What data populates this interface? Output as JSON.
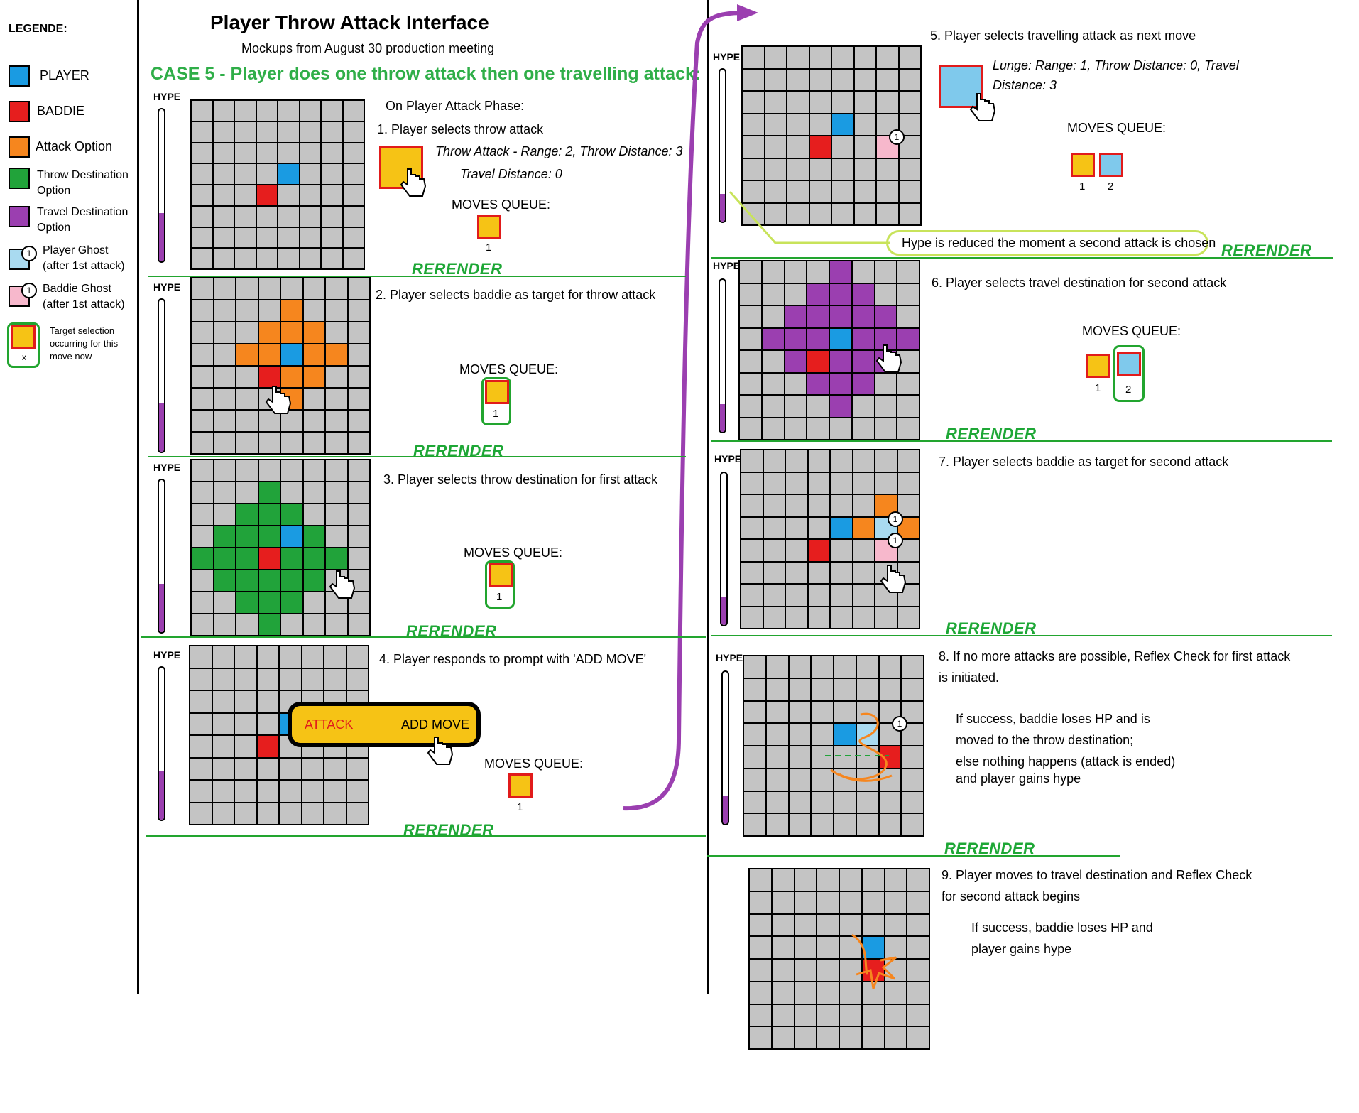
{
  "header": {
    "title": "Player Throw Attack Interface",
    "subtitle": "Mockups from August 30 production meeting",
    "case": "CASE 5 - Player does one throw attack then one travelling attack:"
  },
  "legend": {
    "title": "LEGENDE:",
    "items": [
      {
        "label": "PLAYER",
        "color": "#1a9be2"
      },
      {
        "label": "BADDIE",
        "color": "#e61e1e"
      },
      {
        "label": "Attack Option",
        "color": "#f6861e"
      },
      {
        "label_l1": "Throw Destination",
        "label_l2": "Option",
        "color": "#21a33a"
      },
      {
        "label_l1": "Travel Destination",
        "label_l2": "Option",
        "color": "#9b3fb0"
      },
      {
        "label_l1": "Player Ghost",
        "label_l2": "(after 1st attack)",
        "color": "#a9daf0"
      },
      {
        "label_l1": "Baddie Ghost",
        "label_l2": "(after 1st attack)",
        "color": "#f7b8cc"
      }
    ],
    "target_l1": "Target selection",
    "target_l2": "occurring for this",
    "target_l3": "move now",
    "target_x": "x",
    "ghost_num": "1"
  },
  "common": {
    "hype": "HYPE",
    "rerender": "RERENDER",
    "moves_queue": "MOVES QUEUE:",
    "q1": "1",
    "q2": "2"
  },
  "steps": {
    "s1_intro": "On Player Attack Phase:",
    "s1": "1. Player selects throw attack",
    "s1_info1": "Throw Attack - Range: 2, Throw Distance: 3",
    "s1_info2": "Travel Distance: 0",
    "s2": "2. Player selects baddie as target for throw attack",
    "s3": "3. Player selects throw destination for first attack",
    "s4": "4. Player responds to prompt with 'ADD MOVE'",
    "s4_attack": "ATTACK",
    "s4_add": "ADD MOVE",
    "s5": "5. Player selects travelling attack as next move",
    "s5_info1": "Lunge: Range: 1, Throw Distance: 0, Travel",
    "s5_info2": "Distance: 3",
    "s5_note": "Hype is reduced the moment a second attack is chosen",
    "s6": "6. Player selects travel destination for second attack",
    "s7": "7. Player selects baddie as target for second attack",
    "s8_l1": "8. If no more attacks are possible, Reflex Check for first attack",
    "s8_l2": "is initiated.",
    "s8_d1": "If success, baddie loses HP and is",
    "s8_d2": "moved to the throw destination;",
    "s8_d3": "else nothing happens (attack is ended)",
    "s8_d4": "and player gains hype",
    "s9_l1": "9. Player moves to travel destination and Reflex Check",
    "s9_l2": "for second attack begins",
    "s9_d1": "If success, baddie loses HP and",
    "s9_d2": "player gains hype"
  },
  "hype_levels": {
    "g1": 0.32,
    "g2": 0.32,
    "g3": 0.32,
    "g4": 0.32,
    "g5": 0.18,
    "g6": 0.18,
    "g7": 0.18,
    "g8": 0.18
  },
  "colors": {
    "player": "#1a9be2",
    "baddie": "#e61e1e",
    "attack": "#f6861e",
    "throw_dest": "#21a33a",
    "travel_dest": "#9b3fb0",
    "player_ghost": "#a9daf0",
    "baddie_ghost": "#f7b8cc",
    "cell": "#c4c4c4"
  },
  "grids": {
    "g1": [
      [
        3,
        4,
        "P"
      ],
      [
        4,
        3,
        "B"
      ]
    ],
    "g2": [
      [
        3,
        4,
        "P"
      ],
      [
        4,
        3,
        "B"
      ],
      [
        1,
        4,
        "A"
      ],
      [
        2,
        3,
        "A"
      ],
      [
        2,
        4,
        "A"
      ],
      [
        2,
        5,
        "A"
      ],
      [
        3,
        2,
        "A"
      ],
      [
        3,
        3,
        "A"
      ],
      [
        3,
        5,
        "A"
      ],
      [
        3,
        6,
        "A"
      ],
      [
        4,
        4,
        "A"
      ],
      [
        4,
        5,
        "A"
      ],
      [
        5,
        4,
        "A"
      ]
    ],
    "g3": [
      [
        3,
        4,
        "P"
      ],
      [
        4,
        3,
        "B"
      ],
      [
        1,
        3,
        "T"
      ],
      [
        2,
        2,
        "T"
      ],
      [
        2,
        3,
        "T"
      ],
      [
        2,
        4,
        "T"
      ],
      [
        3,
        1,
        "T"
      ],
      [
        3,
        2,
        "T"
      ],
      [
        3,
        3,
        "T"
      ],
      [
        3,
        5,
        "T"
      ],
      [
        4,
        0,
        "T"
      ],
      [
        4,
        1,
        "T"
      ],
      [
        4,
        2,
        "T"
      ],
      [
        4,
        4,
        "T"
      ],
      [
        4,
        5,
        "T"
      ],
      [
        4,
        6,
        "T"
      ],
      [
        5,
        1,
        "T"
      ],
      [
        5,
        2,
        "T"
      ],
      [
        5,
        3,
        "T"
      ],
      [
        5,
        4,
        "T"
      ],
      [
        5,
        5,
        "T"
      ],
      [
        6,
        2,
        "T"
      ],
      [
        6,
        3,
        "T"
      ],
      [
        6,
        4,
        "T"
      ],
      [
        7,
        3,
        "T"
      ]
    ],
    "g4": [
      [
        3,
        4,
        "P"
      ],
      [
        4,
        3,
        "B"
      ]
    ],
    "g5": [
      [
        3,
        4,
        "P"
      ],
      [
        4,
        3,
        "B"
      ],
      [
        4,
        6,
        "b"
      ]
    ],
    "g6": [
      [
        0,
        4,
        "V"
      ],
      [
        1,
        3,
        "V"
      ],
      [
        1,
        4,
        "V"
      ],
      [
        1,
        5,
        "V"
      ],
      [
        2,
        2,
        "V"
      ],
      [
        2,
        3,
        "V"
      ],
      [
        2,
        4,
        "V"
      ],
      [
        2,
        5,
        "V"
      ],
      [
        2,
        6,
        "V"
      ],
      [
        3,
        1,
        "V"
      ],
      [
        3,
        2,
        "V"
      ],
      [
        3,
        3,
        "V"
      ],
      [
        3,
        4,
        "P"
      ],
      [
        3,
        5,
        "V"
      ],
      [
        3,
        6,
        "V"
      ],
      [
        3,
        7,
        "V"
      ],
      [
        4,
        2,
        "V"
      ],
      [
        4,
        3,
        "B"
      ],
      [
        4,
        4,
        "V"
      ],
      [
        4,
        5,
        "V"
      ],
      [
        4,
        6,
        "V"
      ],
      [
        5,
        3,
        "V"
      ],
      [
        5,
        4,
        "V"
      ],
      [
        5,
        5,
        "V"
      ],
      [
        6,
        4,
        "V"
      ]
    ],
    "g7": [
      [
        3,
        4,
        "P"
      ],
      [
        3,
        5,
        "A"
      ],
      [
        2,
        6,
        "A"
      ],
      [
        3,
        6,
        "p"
      ],
      [
        3,
        7,
        "A"
      ],
      [
        4,
        6,
        "b"
      ],
      [
        4,
        3,
        "B"
      ]
    ],
    "g8": [
      [
        3,
        4,
        "P"
      ],
      [
        3,
        5,
        "p"
      ],
      [
        4,
        6,
        "B"
      ]
    ],
    "g9": [
      [
        3,
        5,
        "P"
      ],
      [
        4,
        5,
        "B"
      ]
    ]
  }
}
